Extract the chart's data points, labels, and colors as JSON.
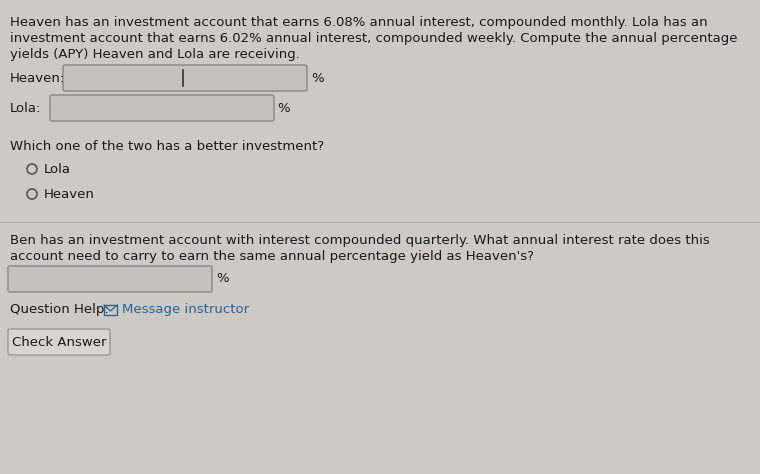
{
  "bg_color": "#cdc9c4",
  "text_color": "#1a1a1a",
  "link_color": "#2a6496",
  "paragraph1_line1": "Heaven has an investment account that earns 6.08% annual interest, compounded monthly. Lola has an",
  "paragraph1_line2": "investment account that earns 6.02% annual interest, compounded weekly. Compute the annual percentage",
  "paragraph1_line3": "yields (APY) Heaven and Lola are receiving.",
  "heaven_label": "Heaven:",
  "lola_label": "Lola:",
  "percent_symbol": "%",
  "question1": "Which one of the two has a better investment?",
  "radio_option1": "Lola",
  "radio_option2": "Heaven",
  "paragraph2_line1": "Ben has an investment account with interest compounded quarterly. What annual interest rate does this",
  "paragraph2_line2": "account need to carry to earn the same annual percentage yield as Heaven's?",
  "question_help_label": "Question Help:",
  "question_help_link": "Message instructor",
  "check_answer_btn": "Check Answer",
  "input_bg_color": "#c5c1bc",
  "input_border_color": "#888888",
  "btn_border_color": "#999999",
  "btn_bg_color": "#d8d4cf",
  "font_size_body": 9.5,
  "font_size_label": 9.5,
  "font_size_btn": 9.5
}
